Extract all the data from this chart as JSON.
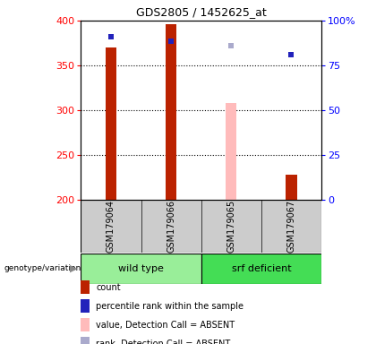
{
  "title": "GDS2805 / 1452625_at",
  "samples": [
    "GSM179064",
    "GSM179066",
    "GSM179065",
    "GSM179067"
  ],
  "red_values": [
    370,
    396,
    null,
    228
  ],
  "pink_values": [
    null,
    null,
    308,
    null
  ],
  "blue_squares": [
    382,
    377,
    null,
    362
  ],
  "lavender_squares": [
    null,
    null,
    372,
    null
  ],
  "ylim_left": [
    200,
    400
  ],
  "yticks_left": [
    200,
    250,
    300,
    350,
    400
  ],
  "yticks_right": [
    0,
    25,
    50,
    75,
    100
  ],
  "bar_width": 0.18,
  "red_color": "#bb2200",
  "pink_color": "#ffbbbb",
  "blue_color": "#2222bb",
  "lavender_color": "#aaaacc",
  "sample_bg_color": "#cccccc",
  "group1_label": "wild type",
  "group2_label": "srf deficient",
  "group1_bg": "#99ee99",
  "group2_bg": "#44dd55",
  "legend_items": [
    {
      "label": "count",
      "color": "#bb2200"
    },
    {
      "label": "percentile rank within the sample",
      "color": "#2222bb"
    },
    {
      "label": "value, Detection Call = ABSENT",
      "color": "#ffbbbb"
    },
    {
      "label": "rank, Detection Call = ABSENT",
      "color": "#aaaacc"
    }
  ],
  "title_fontsize": 9,
  "axis_fontsize": 8,
  "legend_fontsize": 7,
  "sample_fontsize": 7,
  "group_fontsize": 8
}
